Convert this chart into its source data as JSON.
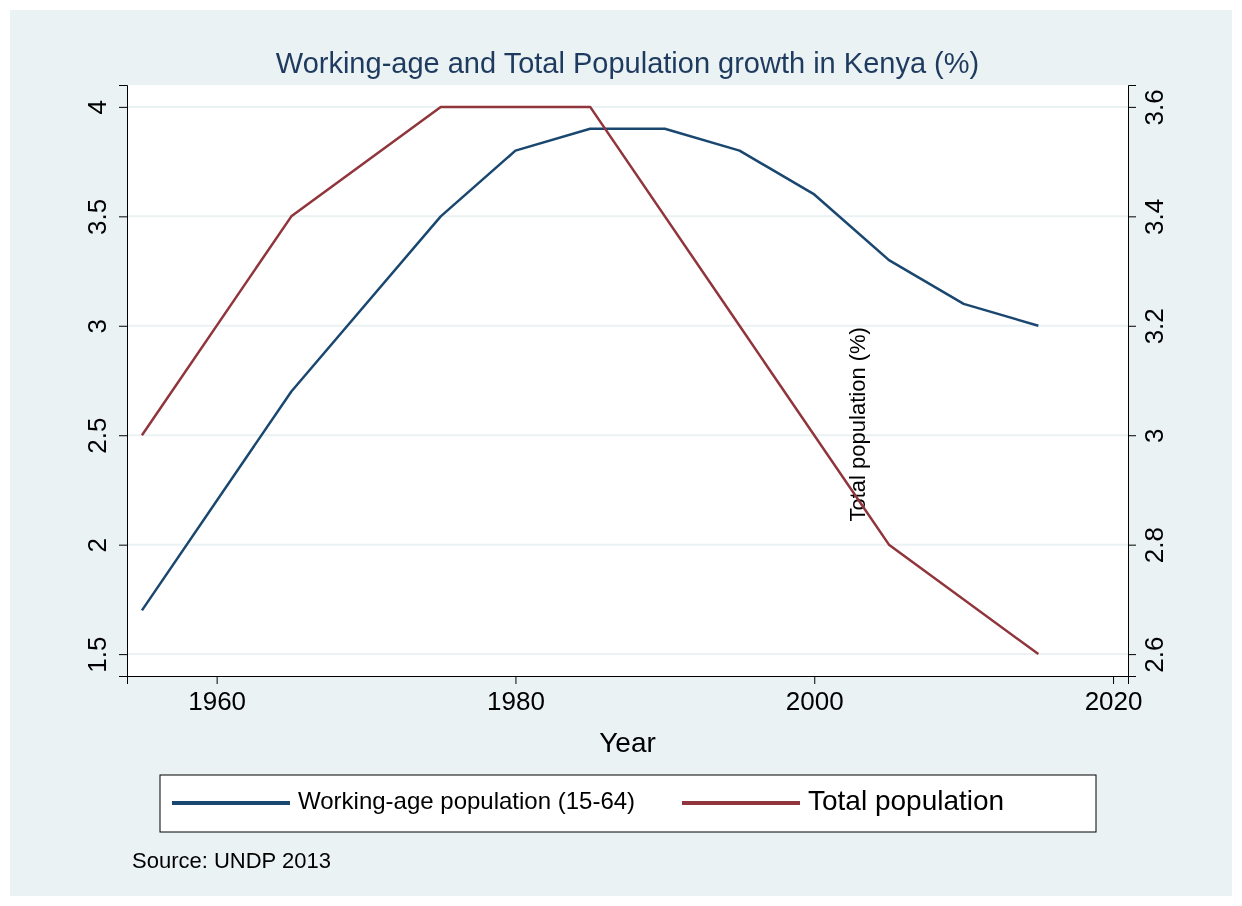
{
  "chart_data": {
    "type": "line",
    "title": "Working-age and Total Population growth in Kenya (%)",
    "xlabel": "Year",
    "y2label": "Total population (%)",
    "x": [
      1955,
      1965,
      1975,
      1980,
      1985,
      1990,
      1995,
      2000,
      2005,
      2010,
      2015
    ],
    "series": [
      {
        "name": "Working-age population (15-64)",
        "color": "#1a476f",
        "values": [
          1.7,
          2.7,
          3.5,
          3.8,
          3.9,
          3.9,
          3.8,
          3.6,
          3.3,
          3.1,
          3.0
        ]
      },
      {
        "name": "Total population",
        "color": "#90353b",
        "axis": "y2",
        "x": [
          1955,
          1965,
          1975,
          1985,
          1995,
          2005,
          2015
        ],
        "values": [
          3.0,
          3.4,
          3.6,
          3.6,
          3.2,
          2.8,
          2.6
        ]
      }
    ],
    "xlim": [
      1954,
      2021
    ],
    "xticks": [
      1960,
      1980,
      2000,
      2020
    ],
    "ylim": [
      1.4,
      4.1
    ],
    "yticks": [
      1.5,
      2,
      2.5,
      3,
      3.5,
      4
    ],
    "y2lim": [
      2.56,
      3.64
    ],
    "y2ticks": [
      2.6,
      2.8,
      3,
      3.2,
      3.4,
      3.6
    ],
    "grid": "y",
    "legend": "bottom",
    "marker": "none",
    "line_style": "solid",
    "annotations": [
      "Source: UNDP 2013"
    ]
  }
}
